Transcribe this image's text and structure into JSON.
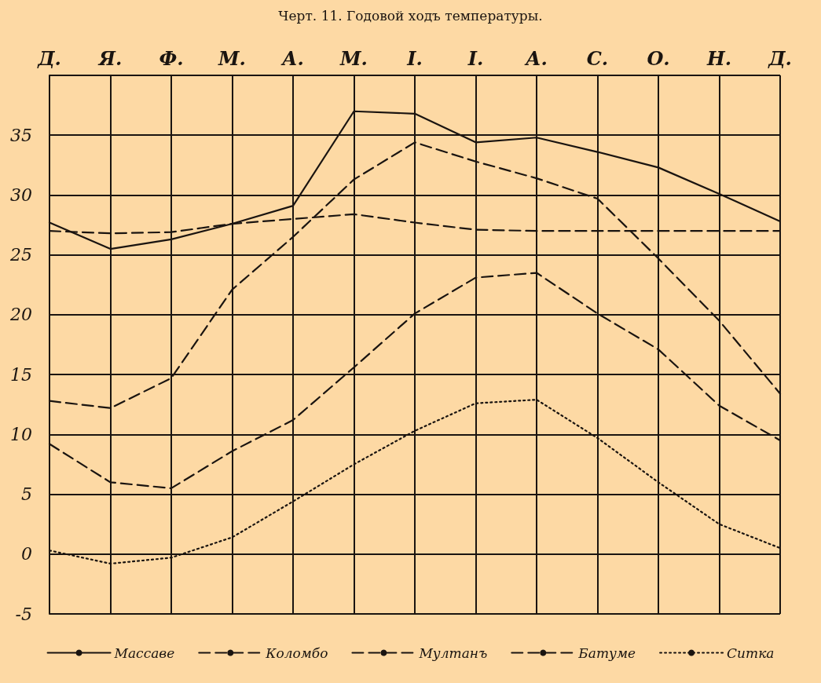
{
  "chart_data": {
    "type": "line",
    "title": "Черт. 11. Годовой ходъ температуры.",
    "categories": [
      "Д.",
      "Я.",
      "Ф.",
      "М.",
      "А.",
      "М.",
      "І.",
      "І.",
      "А.",
      "С.",
      "О.",
      "Н.",
      "Д."
    ],
    "series": [
      {
        "name": "Массаве",
        "color": "#1a1410",
        "line_style": "solid",
        "values": [
          27.7,
          25.5,
          26.3,
          27.6,
          29.1,
          37.0,
          36.8,
          34.4,
          34.8,
          33.6,
          32.3,
          30.1,
          27.8
        ]
      },
      {
        "name": "Коломбо",
        "color": "#1a1410",
        "line_style": "dashed",
        "values": [
          27.0,
          26.8,
          26.9,
          27.6,
          28.0,
          28.4,
          27.7,
          27.1,
          27.0,
          27.0,
          27.0,
          27.0,
          27.0
        ]
      },
      {
        "name": "Мултанъ",
        "color": "#1a1410",
        "line_style": "dashed",
        "values": [
          12.8,
          12.2,
          14.7,
          22.1,
          26.5,
          31.3,
          34.4,
          32.8,
          31.4,
          29.7,
          24.7,
          19.5,
          13.4
        ]
      },
      {
        "name": "Батуме",
        "color": "#1a1410",
        "line_style": "dashed",
        "values": [
          9.2,
          6.0,
          5.5,
          8.6,
          11.2,
          15.6,
          20.1,
          23.1,
          23.5,
          20.1,
          17.1,
          12.4,
          9.5
        ]
      },
      {
        "name": "Ситка",
        "color": "#1a1410",
        "line_style": "dotted",
        "values": [
          0.3,
          -0.8,
          -0.3,
          1.4,
          4.4,
          7.5,
          10.3,
          12.6,
          12.9,
          9.7,
          6.0,
          2.5,
          0.5
        ]
      }
    ],
    "ylim": [
      -5,
      40
    ],
    "yticks": [
      -5,
      0,
      5,
      10,
      15,
      20,
      25,
      30,
      35,
      {
        "value": 40,
        "label": null
      }
    ],
    "grid": true,
    "legend": "bottom",
    "marker": "none"
  }
}
